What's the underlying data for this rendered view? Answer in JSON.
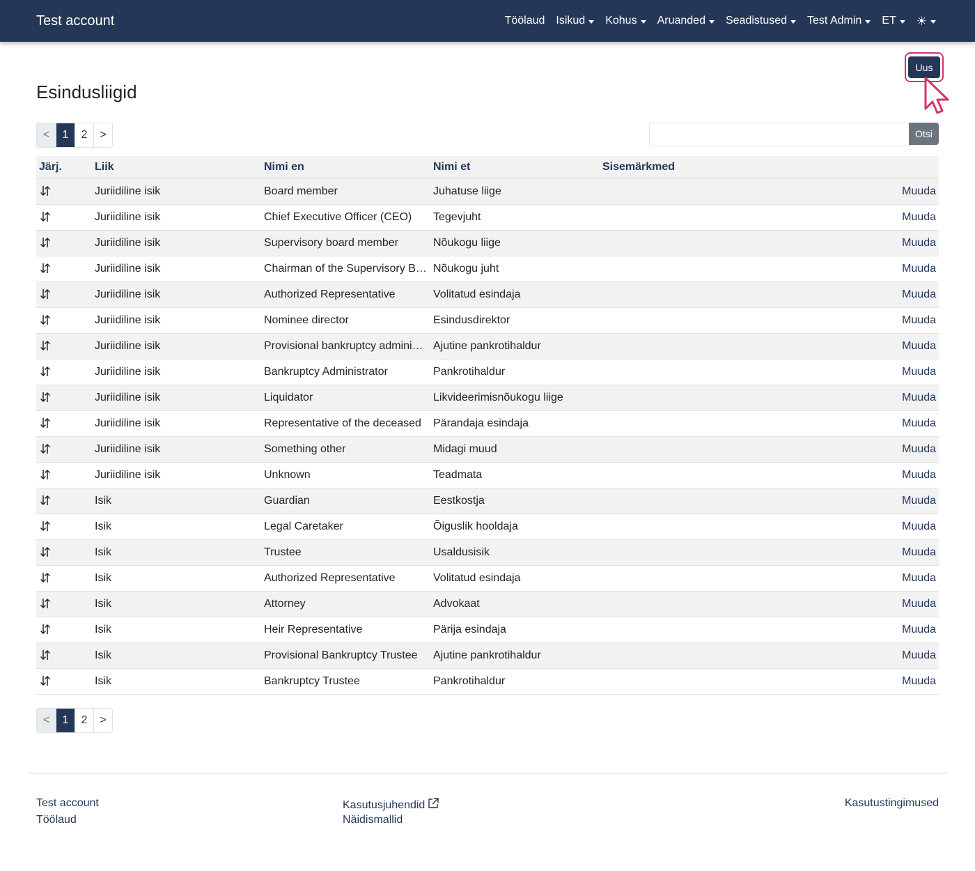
{
  "navbar": {
    "brand": "Test account",
    "items": [
      {
        "label": "Töölaud",
        "dropdown": false
      },
      {
        "label": "Isikud",
        "dropdown": true
      },
      {
        "label": "Kohus",
        "dropdown": true
      },
      {
        "label": "Aruanded",
        "dropdown": true
      },
      {
        "label": "Seadistused",
        "dropdown": true
      },
      {
        "label": "Test Admin",
        "dropdown": true
      },
      {
        "label": "ET",
        "dropdown": true
      }
    ],
    "theme_icon": "sun-icon"
  },
  "new_button": "Uus",
  "page_title": "Esindusliigid",
  "pagination": {
    "prev": "<",
    "next": ">",
    "pages": [
      "1",
      "2"
    ],
    "active": "1"
  },
  "search": {
    "value": "",
    "placeholder": "",
    "button": "Otsi"
  },
  "table": {
    "headers": {
      "order": "Järj.",
      "type": "Liik",
      "name_en": "Nimi en",
      "name_et": "Nimi et",
      "notes": "Sisemärkmed"
    },
    "edit_label": "Muuda",
    "rows": [
      {
        "type": "Juriidiline isik",
        "name_en": "Board member",
        "name_et": "Juhatuse liige",
        "notes": ""
      },
      {
        "type": "Juriidiline isik",
        "name_en": "Chief Executive Officer (CEO)",
        "name_et": "Tegevjuht",
        "notes": ""
      },
      {
        "type": "Juriidiline isik",
        "name_en": "Supervisory board member",
        "name_et": "Nõukogu liige",
        "notes": ""
      },
      {
        "type": "Juriidiline isik",
        "name_en": "Chairman of the Supervisory Board",
        "name_et": "Nõukogu juht",
        "notes": ""
      },
      {
        "type": "Juriidiline isik",
        "name_en": "Authorized Representative",
        "name_et": "Volitatud esindaja",
        "notes": ""
      },
      {
        "type": "Juriidiline isik",
        "name_en": "Nominee director",
        "name_et": "Esindusdirektor",
        "notes": ""
      },
      {
        "type": "Juriidiline isik",
        "name_en": "Provisional bankruptcy administrator",
        "name_et": "Ajutine pankrotihaldur",
        "notes": ""
      },
      {
        "type": "Juriidiline isik",
        "name_en": "Bankruptcy Administrator",
        "name_et": "Pankrotihaldur",
        "notes": ""
      },
      {
        "type": "Juriidiline isik",
        "name_en": "Liquidator",
        "name_et": "Likvideerimisnõukogu liige",
        "notes": ""
      },
      {
        "type": "Juriidiline isik",
        "name_en": "Representative of the deceased",
        "name_et": "Pärandaja esindaja",
        "notes": ""
      },
      {
        "type": "Juriidiline isik",
        "name_en": "Something other",
        "name_et": "Midagi muud",
        "notes": ""
      },
      {
        "type": "Juriidiline isik",
        "name_en": "Unknown",
        "name_et": "Teadmata",
        "notes": ""
      },
      {
        "type": "Isik",
        "name_en": "Guardian",
        "name_et": "Eestkostja",
        "notes": ""
      },
      {
        "type": "Isik",
        "name_en": "Legal Caretaker",
        "name_et": "Õiguslik hooldaja",
        "notes": ""
      },
      {
        "type": "Isik",
        "name_en": "Trustee",
        "name_et": "Usaldusisik",
        "notes": ""
      },
      {
        "type": "Isik",
        "name_en": "Authorized Representative",
        "name_et": "Volitatud esindaja",
        "notes": ""
      },
      {
        "type": "Isik",
        "name_en": "Attorney",
        "name_et": "Advokaat",
        "notes": ""
      },
      {
        "type": "Isik",
        "name_en": "Heir Representative",
        "name_et": "Pärija esindaja",
        "notes": ""
      },
      {
        "type": "Isik",
        "name_en": "Provisional Bankruptcy Trustee",
        "name_et": "Ajutine pankrotihaldur",
        "notes": ""
      },
      {
        "type": "Isik",
        "name_en": "Bankruptcy Trustee",
        "name_et": "Pankrotihaldur",
        "notes": ""
      }
    ]
  },
  "footer": {
    "brand": "Test account",
    "dashboard": "Töölaud",
    "manuals": "Kasutusjuhendid",
    "templates": "Näidismallid",
    "terms": "Kasutustingimused"
  },
  "colors": {
    "navbar": "#243757",
    "accent": "#243757",
    "highlight": "#d6336c",
    "search_button": "#6c757d",
    "row_stripe": "#f2f2f2"
  }
}
